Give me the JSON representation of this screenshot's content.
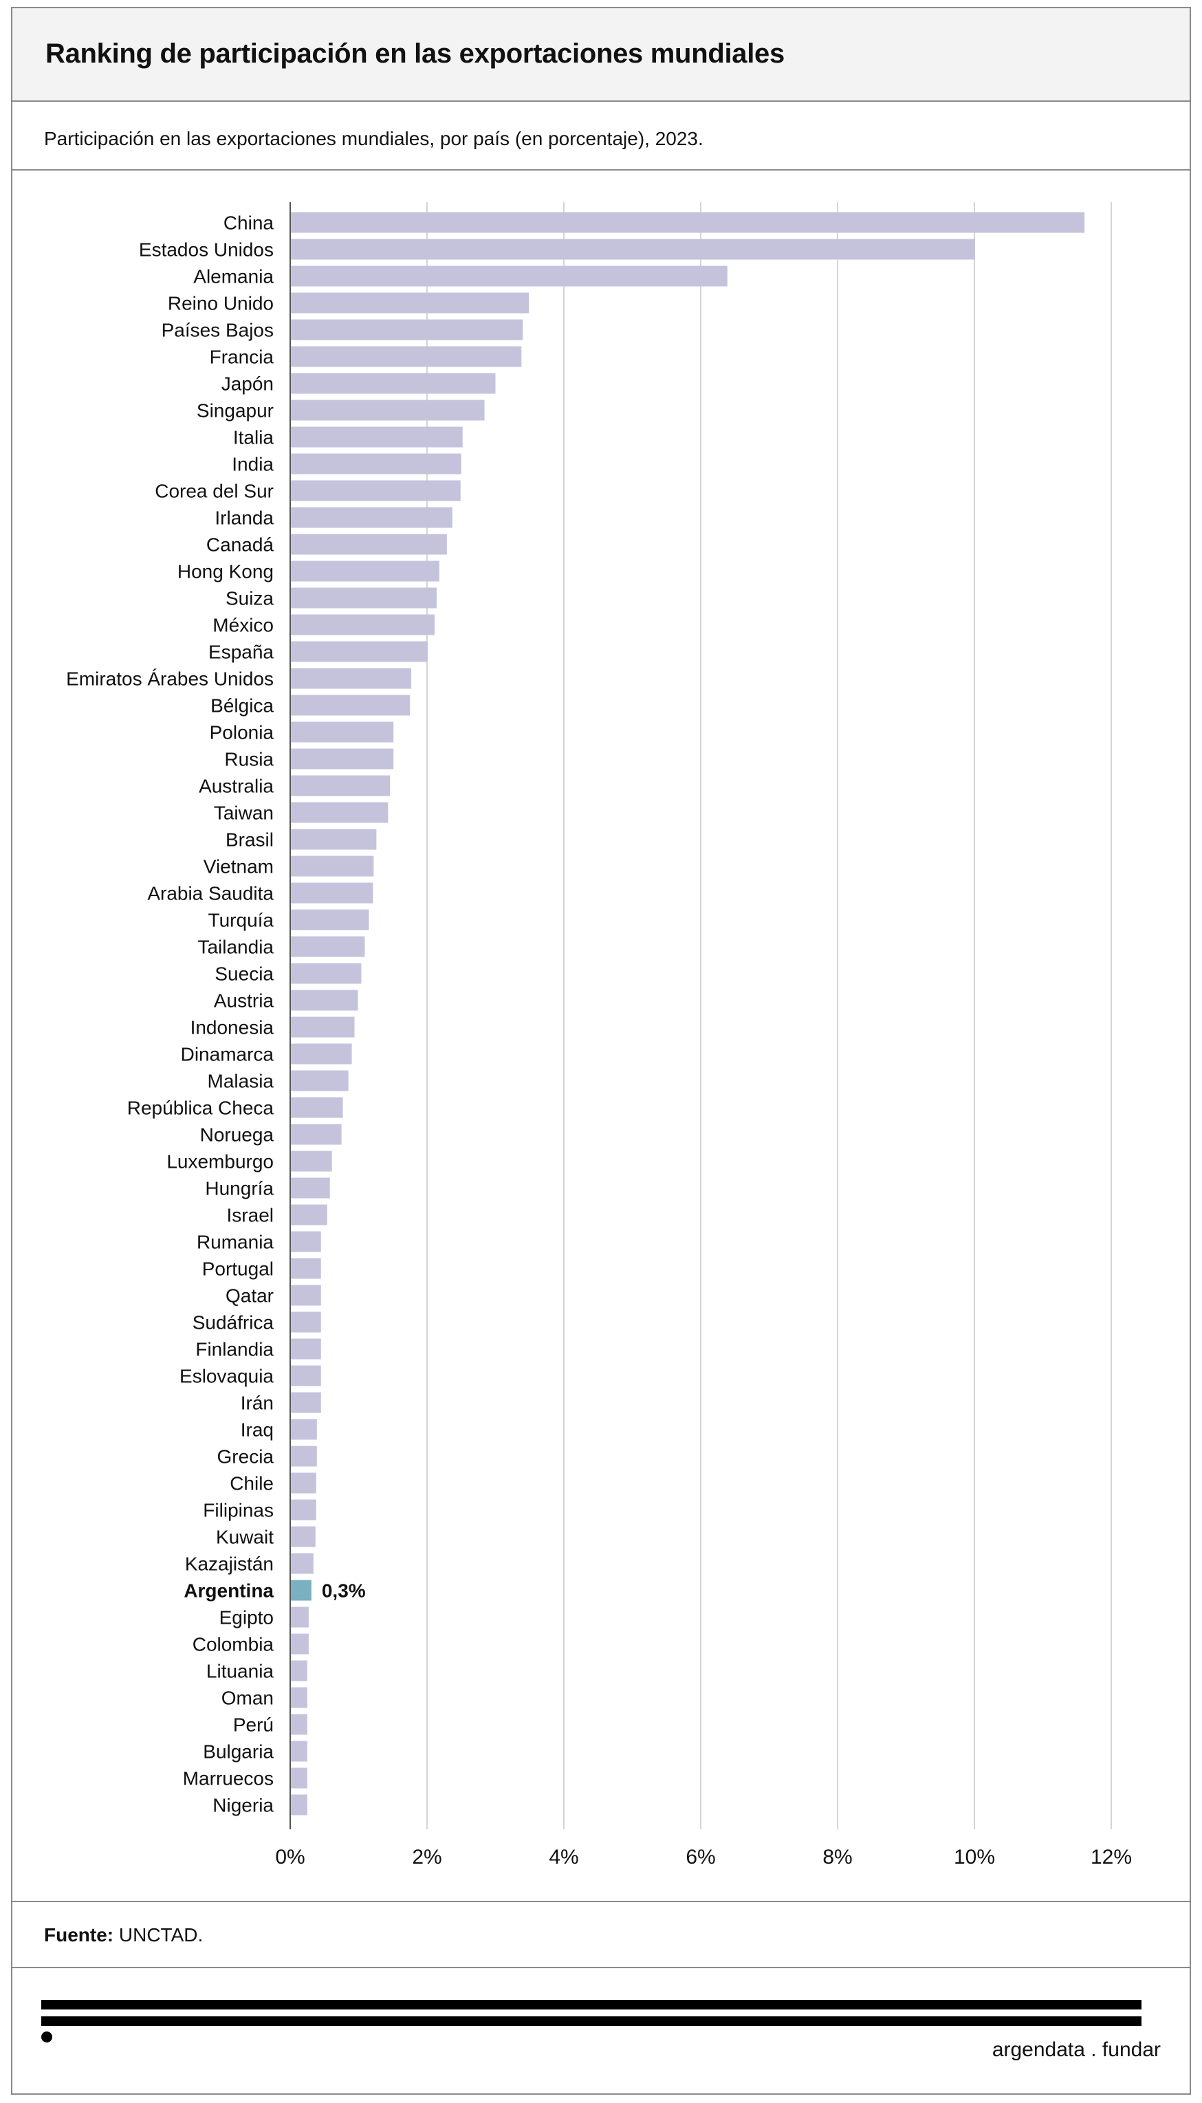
{
  "title": "Ranking de participación en las exportaciones mundiales",
  "subtitle": "Participación en las exportaciones mundiales, por país (en porcentaje), 2023.",
  "source": {
    "label": "Fuente:",
    "text": "UNCTAD."
  },
  "brand": "argendata . fundar",
  "colors": {
    "bar": "#c5c3dc",
    "highlight": "#7ab0c0",
    "grid": "#d4d4d4",
    "axis": "#555555"
  },
  "chart_data": {
    "type": "bar",
    "orientation": "horizontal",
    "xlim": [
      0,
      12
    ],
    "xticks": [
      0,
      2,
      4,
      6,
      8,
      10,
      12
    ],
    "tick_labels": [
      "0%",
      "2%",
      "4%",
      "6%",
      "8%",
      "10%",
      "12%"
    ],
    "highlight": {
      "category": "Argentina",
      "label": "0,3%"
    },
    "grid": true,
    "categories": [
      "China",
      "Estados Unidos",
      "Alemania",
      "Reino Unido",
      "Países Bajos",
      "Francia",
      "Japón",
      "Singapur",
      "Italia",
      "India",
      "Corea del Sur",
      "Irlanda",
      "Canadá",
      "Hong Kong",
      "Suiza",
      "México",
      "España",
      "Emiratos Árabes Unidos",
      "Bélgica",
      "Polonia",
      "Rusia",
      "Australia",
      "Taiwan",
      "Brasil",
      "Vietnam",
      "Arabia Saudita",
      "Turquía",
      "Tailandia",
      "Suecia",
      "Austria",
      "Indonesia",
      "Dinamarca",
      "Malasia",
      "República Checa",
      "Noruega",
      "Luxemburgo",
      "Hungría",
      "Israel",
      "Rumania",
      "Portugal",
      "Qatar",
      "Sudáfrica",
      "Finlandia",
      "Eslovaquia",
      "Irán",
      "Iraq",
      "Grecia",
      "Chile",
      "Filipinas",
      "Kuwait",
      "Kazajistán",
      "Argentina",
      "Egipto",
      "Colombia",
      "Lituania",
      "Oman",
      "Perú",
      "Bulgaria",
      "Marruecos",
      "Nigeria"
    ],
    "values": [
      11.6,
      10.0,
      6.38,
      3.48,
      3.39,
      3.37,
      2.99,
      2.83,
      2.51,
      2.49,
      2.48,
      2.36,
      2.28,
      2.17,
      2.13,
      2.1,
      2.0,
      1.76,
      1.74,
      1.5,
      1.5,
      1.45,
      1.42,
      1.25,
      1.21,
      1.2,
      1.14,
      1.08,
      1.03,
      0.98,
      0.93,
      0.89,
      0.84,
      0.76,
      0.74,
      0.6,
      0.57,
      0.53,
      0.44,
      0.44,
      0.44,
      0.44,
      0.44,
      0.44,
      0.44,
      0.38,
      0.38,
      0.37,
      0.37,
      0.36,
      0.33,
      0.3,
      0.26,
      0.26,
      0.24,
      0.24,
      0.24,
      0.24,
      0.24,
      0.24
    ]
  }
}
